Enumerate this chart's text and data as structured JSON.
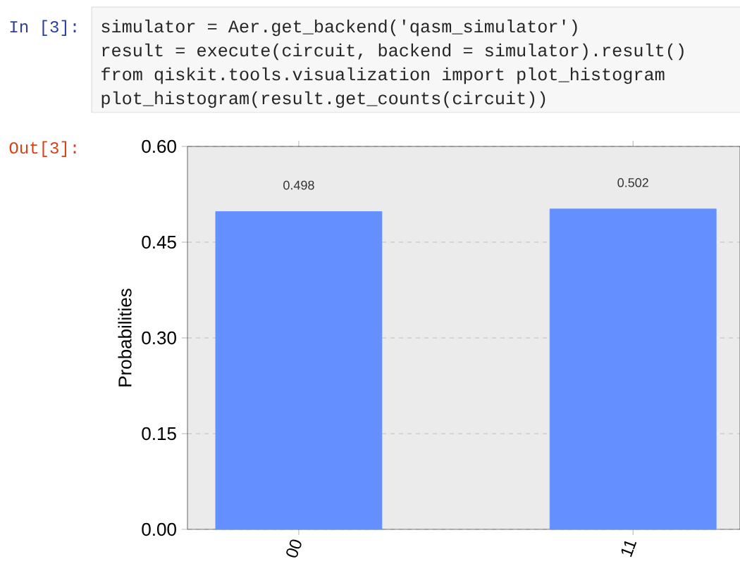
{
  "chart_data": {
    "type": "bar",
    "ylabel": "Probabilities",
    "categories": [
      "00",
      "11"
    ],
    "values": [
      0.498,
      0.502
    ],
    "value_labels": [
      "0.498",
      "0.502"
    ],
    "color": "#648fff",
    "ylim": [
      0,
      0.6
    ],
    "yticks": [
      {
        "value": 0,
        "label": "0.00"
      },
      {
        "value": 0.15,
        "label": "0.15"
      },
      {
        "value": 0.3,
        "label": "0.30"
      },
      {
        "value": 0.45,
        "label": "0.45"
      },
      {
        "value": 0.6,
        "label": "0.60"
      }
    ],
    "grid": "y",
    "annotations": [
      "In [3]:",
      "simulator = Aer.get_backend('qasm_simulator')",
      "result = execute(circuit, backend = simulator).result()",
      "from qiskit.tools.visualization import plot_histogram",
      "plot_histogram(result.get_counts(circuit))",
      "Out[3]:"
    ]
  }
}
